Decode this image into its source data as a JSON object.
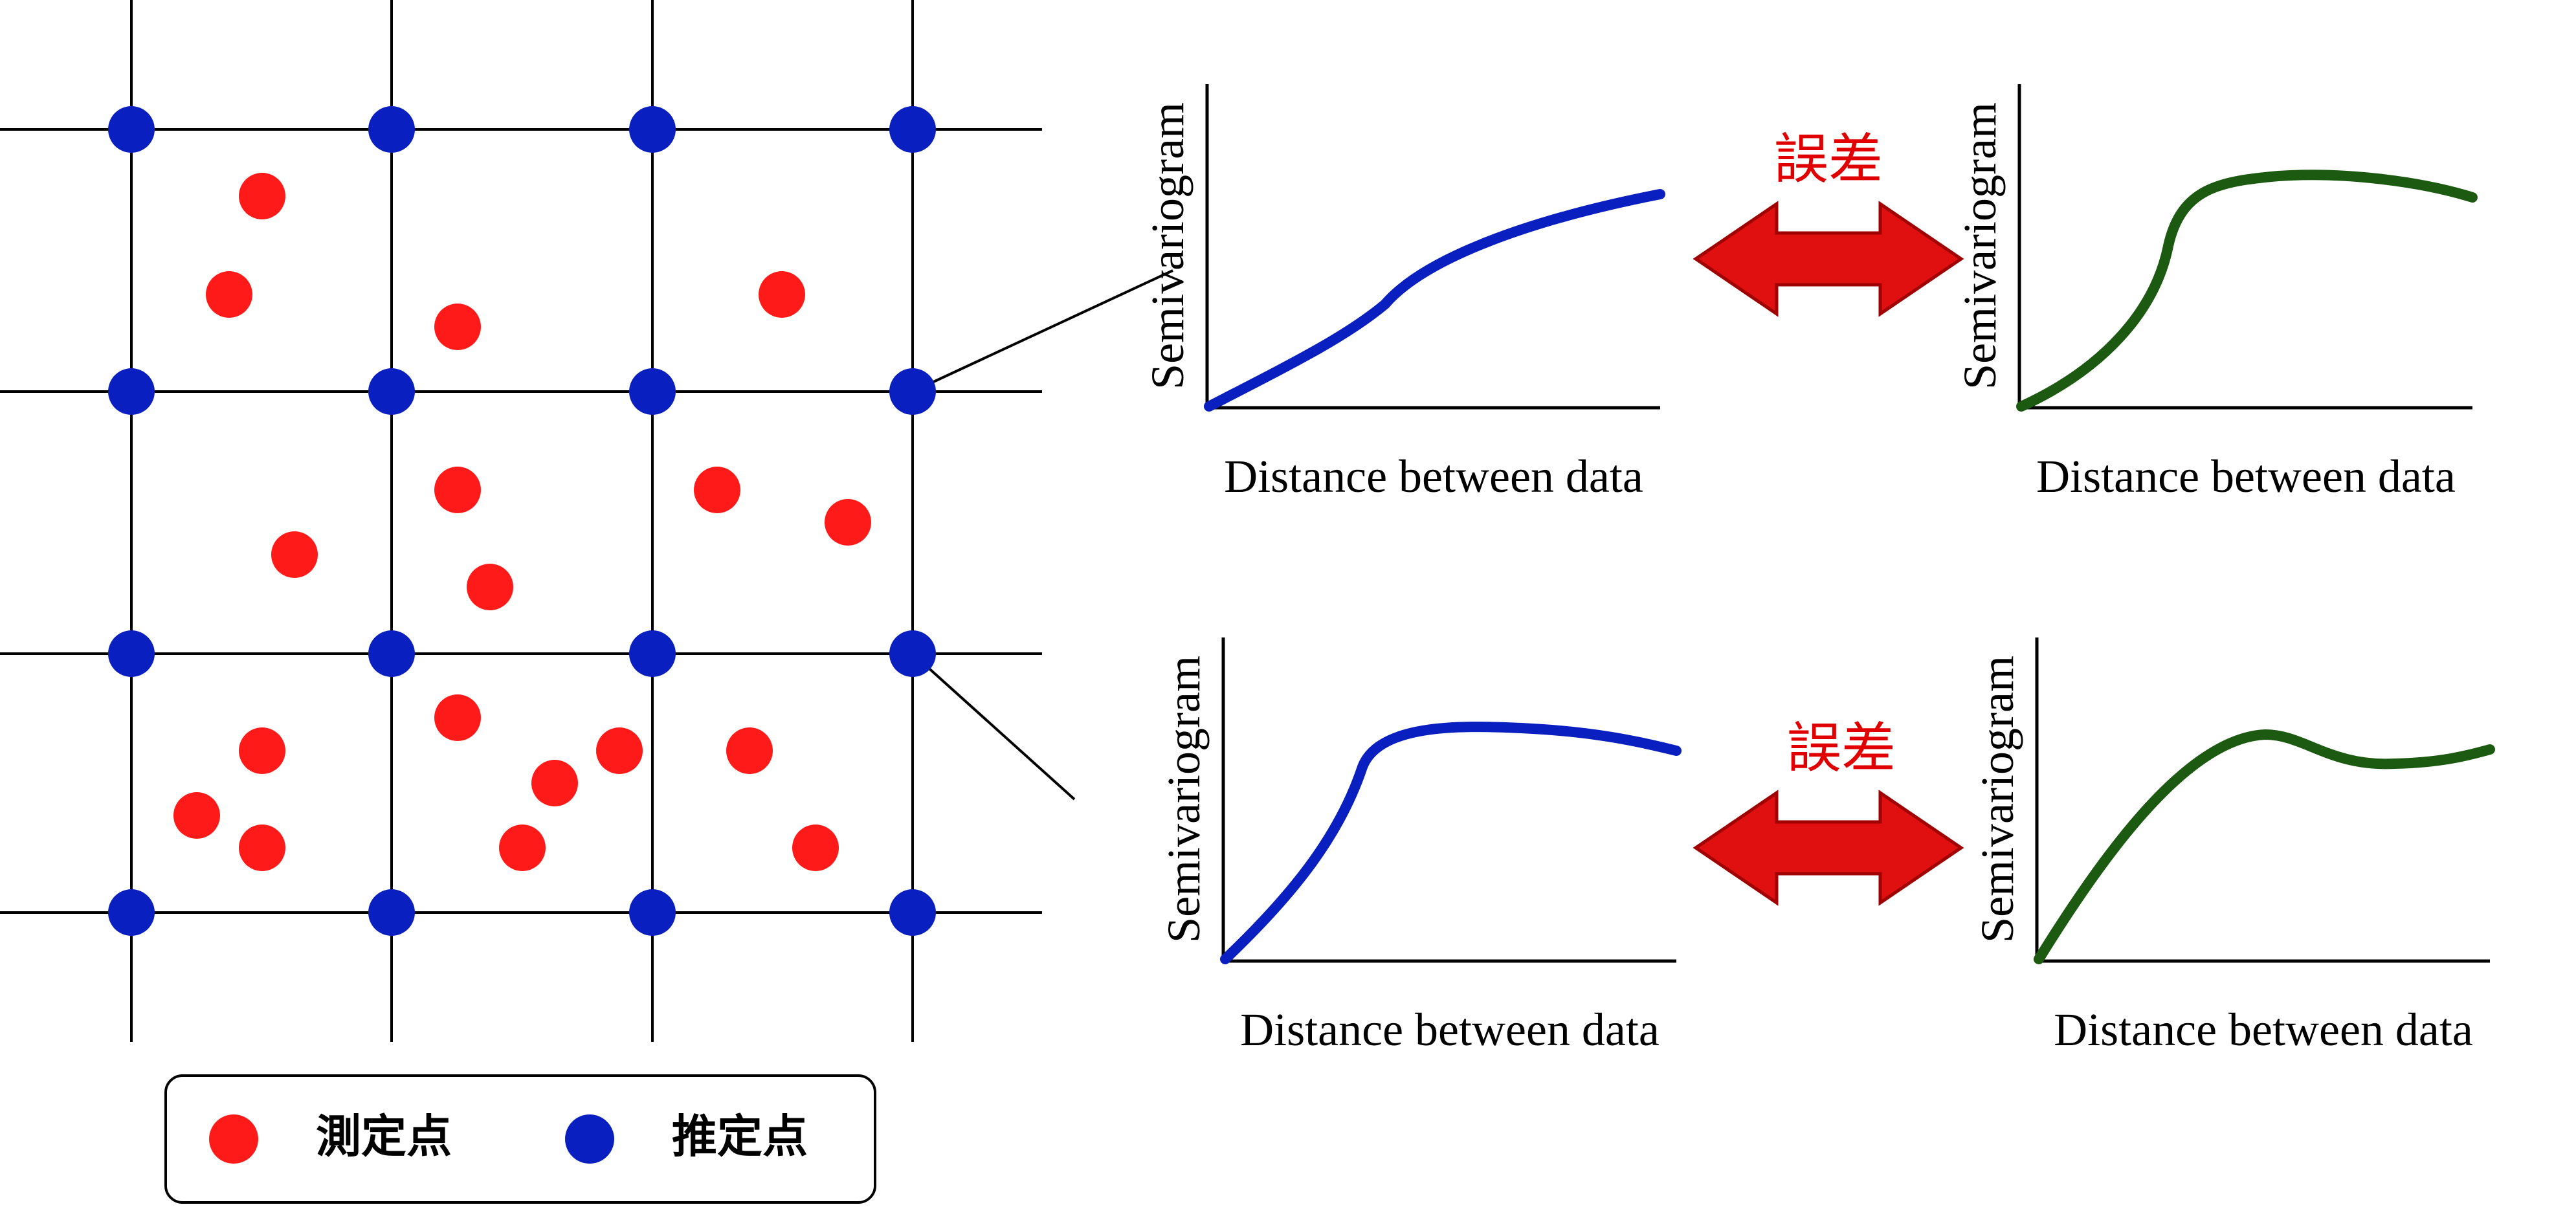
{
  "colors": {
    "measured": "#ff1a1a",
    "estimated": "#0a1fbf",
    "blue_curve": "#0a1fbf",
    "green_curve": "#1b5a10",
    "arrow_fill": "#e01010",
    "error_text": "#e00000"
  },
  "legend": {
    "measured_label": "測定点",
    "estimated_label": "推定点"
  },
  "panels": [
    {
      "xlabel": "Distance between data",
      "ylabel": "Semivariogram",
      "curve": "blue"
    },
    {
      "xlabel": "Distance between data",
      "ylabel": "Semivariogram",
      "curve": "green"
    },
    {
      "xlabel": "Distance between data",
      "ylabel": "Semivariogram",
      "curve": "blue"
    },
    {
      "xlabel": "Distance between data",
      "ylabel": "Semivariogram",
      "curve": "green"
    }
  ],
  "comparisons": [
    {
      "label": "誤差",
      "icon": "double-arrow-icon"
    },
    {
      "label": "誤差",
      "icon": "double-arrow-icon"
    }
  ]
}
